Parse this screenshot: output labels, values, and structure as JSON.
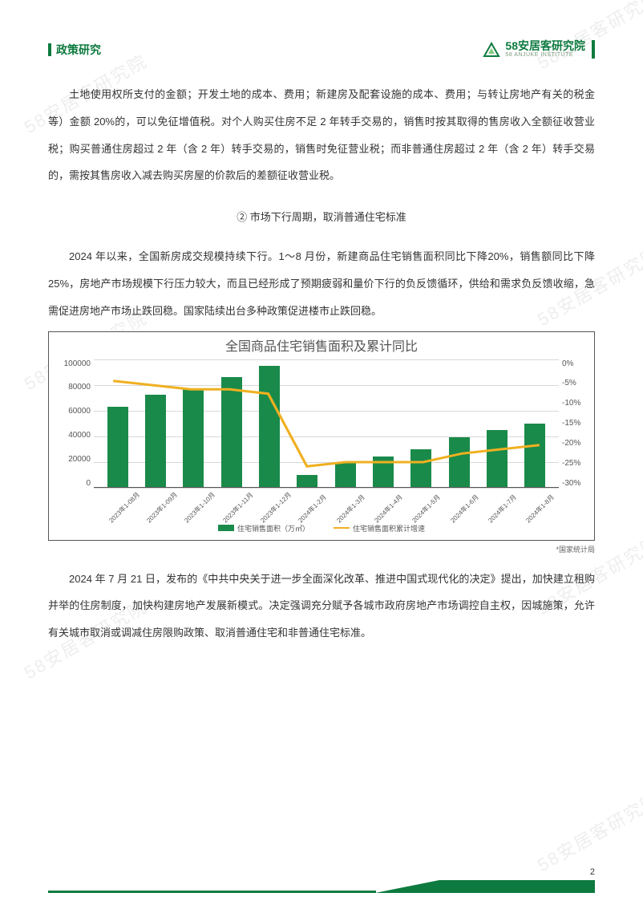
{
  "header": {
    "category": "政策研究",
    "logo_main": "58安居客研究院",
    "logo_sub": "58 ANJUKE INSTITUTE"
  },
  "watermark": "58安居客研究院",
  "body": {
    "para1": "土地使用权所支付的金额；开发土地的成本、费用；新建房及配套设施的成本、费用；与转让房地产有关的税金等）金额 20%的，可以免征增值税。对个人购买住房不足 2 年转手交易的，销售时按其取得的售房收入全额征收营业税；购买普通住房超过 2 年（含 2 年）转手交易的，销售时免征营业税；而非普通住房超过 2 年（含 2 年）转手交易的，需按其售房收入减去购买房屋的价款后的差额征收营业税。",
    "heading": "② 市场下行周期，取消普通住宅标准",
    "para2": "2024 年以来，全国新房成交规模持续下行。1～8 月份，新建商品住宅销售面积同比下降20%，销售额同比下降 25%，房地产市场规模下行压力较大，而且已经形成了预期疲弱和量价下行的负反馈循环，供给和需求负反馈收缩，急需促进房地产市场止跌回稳。国家陆续出台多种政策促进楼市止跌回稳。",
    "para3": "2024 年 7 月 21 日，发布的《中共中央关于进一步全面深化改革、推进中国式现代化的决定》提出，加快建立租购并举的住房制度，加快构建房地产发展新模式。决定强调充分赋予各城市政府房地产市场调控自主权，因城施策，允许有关城市取消或调减住房限购政策、取消普通住宅和非普通住宅标准。"
  },
  "chart": {
    "title": "全国商品住宅销售面积及累计同比",
    "type": "bar-line",
    "y_left": {
      "max": 100000,
      "step": 20000,
      "ticks": [
        "100000",
        "80000",
        "60000",
        "40000",
        "20000",
        "0"
      ]
    },
    "y_right": {
      "max": 0,
      "min": -30,
      "step": 5,
      "ticks": [
        "0%",
        "-5%",
        "-10%",
        "-15%",
        "-20%",
        "-25%",
        "-30%"
      ]
    },
    "categories": [
      "2023年1-08月",
      "2023年1-09月",
      "2023年1-10月",
      "2023年1-11月",
      "2023年1-12月",
      "2024年1-2月",
      "2024年1-3月",
      "2024年1-4月",
      "2024年1-5月",
      "2024年1-6月",
      "2024年1-7月",
      "2024年1-8月"
    ],
    "bar_values": [
      63000,
      72000,
      77000,
      86000,
      95000,
      10000,
      19000,
      24000,
      30000,
      39000,
      45000,
      50000
    ],
    "line_values": [
      -5,
      -6,
      -7,
      -7,
      -8,
      -25,
      -24,
      -24,
      -24,
      -22,
      -21,
      -20
    ],
    "bar_color": "#1a8a4a",
    "line_color": "#f0b020",
    "grid_color": "#d8d8d8",
    "background_color": "#ffffff",
    "legend_bar": "住宅销售面积（万㎡）",
    "legend_line": "住宅销售面积累计增速",
    "source": "*国家统计局"
  },
  "footer": {
    "page_number": "2"
  }
}
